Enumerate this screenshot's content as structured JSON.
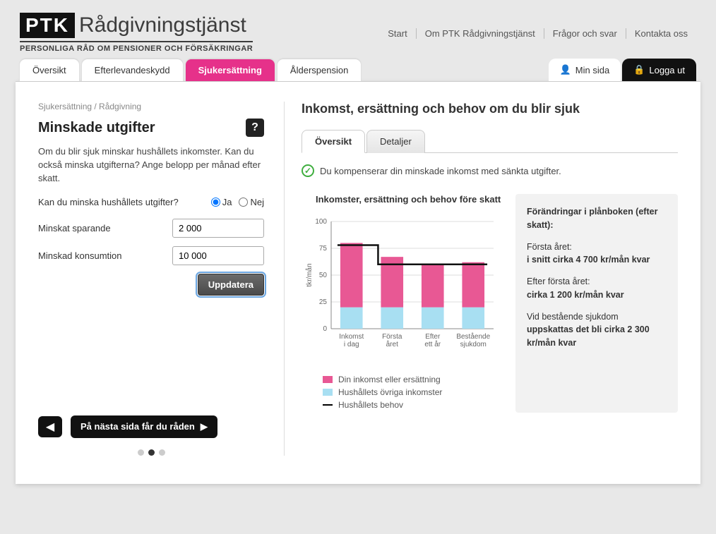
{
  "logo": {
    "box": "PTK",
    "text": "Rådgivningstjänst",
    "sub": "PERSONLIGA RÅD OM PENSIONER OCH FÖRSÄKRINGAR"
  },
  "topnav": [
    "Start",
    "Om PTK Rådgivningstjänst",
    "Frågor och svar",
    "Kontakta oss"
  ],
  "tabs": {
    "items": [
      "Översikt",
      "Efterlevandeskydd",
      "Sjukersättning",
      "Ålderspension"
    ],
    "active_index": 2
  },
  "toptabs_right": {
    "min": "Min sida",
    "logout": "Logga ut"
  },
  "breadcrumb": "Sjukersättning / Rådgivning",
  "left": {
    "title": "Minskade utgifter",
    "help": "?",
    "intro": "Om du blir sjuk minskar hushållets inkomster. Kan du också minska utgifterna? Ange belopp per månad efter skatt.",
    "radio_q": "Kan du minska hushållets utgifter?",
    "radio_yes": "Ja",
    "radio_no": "Nej",
    "field1_label": "Minskat sparande",
    "field1_value": "2 000",
    "field2_label": "Minskad konsumtion",
    "field2_value": "10 000",
    "update": "Uppdatera",
    "next": "På nästa sida får du råden",
    "dots": {
      "count": 3,
      "active": 1
    }
  },
  "right": {
    "title": "Inkomst, ersättning och behov om du blir sjuk",
    "subtabs": {
      "items": [
        "Översikt",
        "Detaljer"
      ],
      "active_index": 0
    },
    "status": "Du kompenserar din minskade inkomst med sänkta utgifter.",
    "chart": {
      "title": "Inkomster, ersättning och behov före skatt",
      "ylabel": "tkr/mån",
      "ylim": [
        0,
        100
      ],
      "ytick_step": 25,
      "categories": [
        "Inkomst\ni dag",
        "Första\nåret",
        "Efter\nett år",
        "Bestående\nsjukdom"
      ],
      "series_other": [
        20,
        20,
        20,
        20
      ],
      "series_income": [
        60,
        47,
        40,
        42
      ],
      "line_need": [
        78,
        60,
        60,
        60
      ],
      "colors": {
        "income": "#e85894",
        "other": "#a8dff2",
        "need": "#111111",
        "grid": "#dddddd",
        "axis": "#888888",
        "bg": "#ffffff"
      },
      "bar_width": 0.55
    },
    "legend": {
      "income": "Din inkomst eller ersättning",
      "other": "Hushållets övriga inkomster",
      "need": "Hushållets behov"
    },
    "panel": {
      "title": "Förändringar i plånboken (efter skatt):",
      "l1a": "Första året:",
      "l1b": "i snitt cirka 4 700 kr/mån kvar",
      "l2a": "Efter första året:",
      "l2b": "cirka 1 200 kr/mån kvar",
      "l3a": "Vid bestående sjukdom ",
      "l3b": "uppskattas det bli cirka 2 300 kr/mån kvar"
    }
  }
}
